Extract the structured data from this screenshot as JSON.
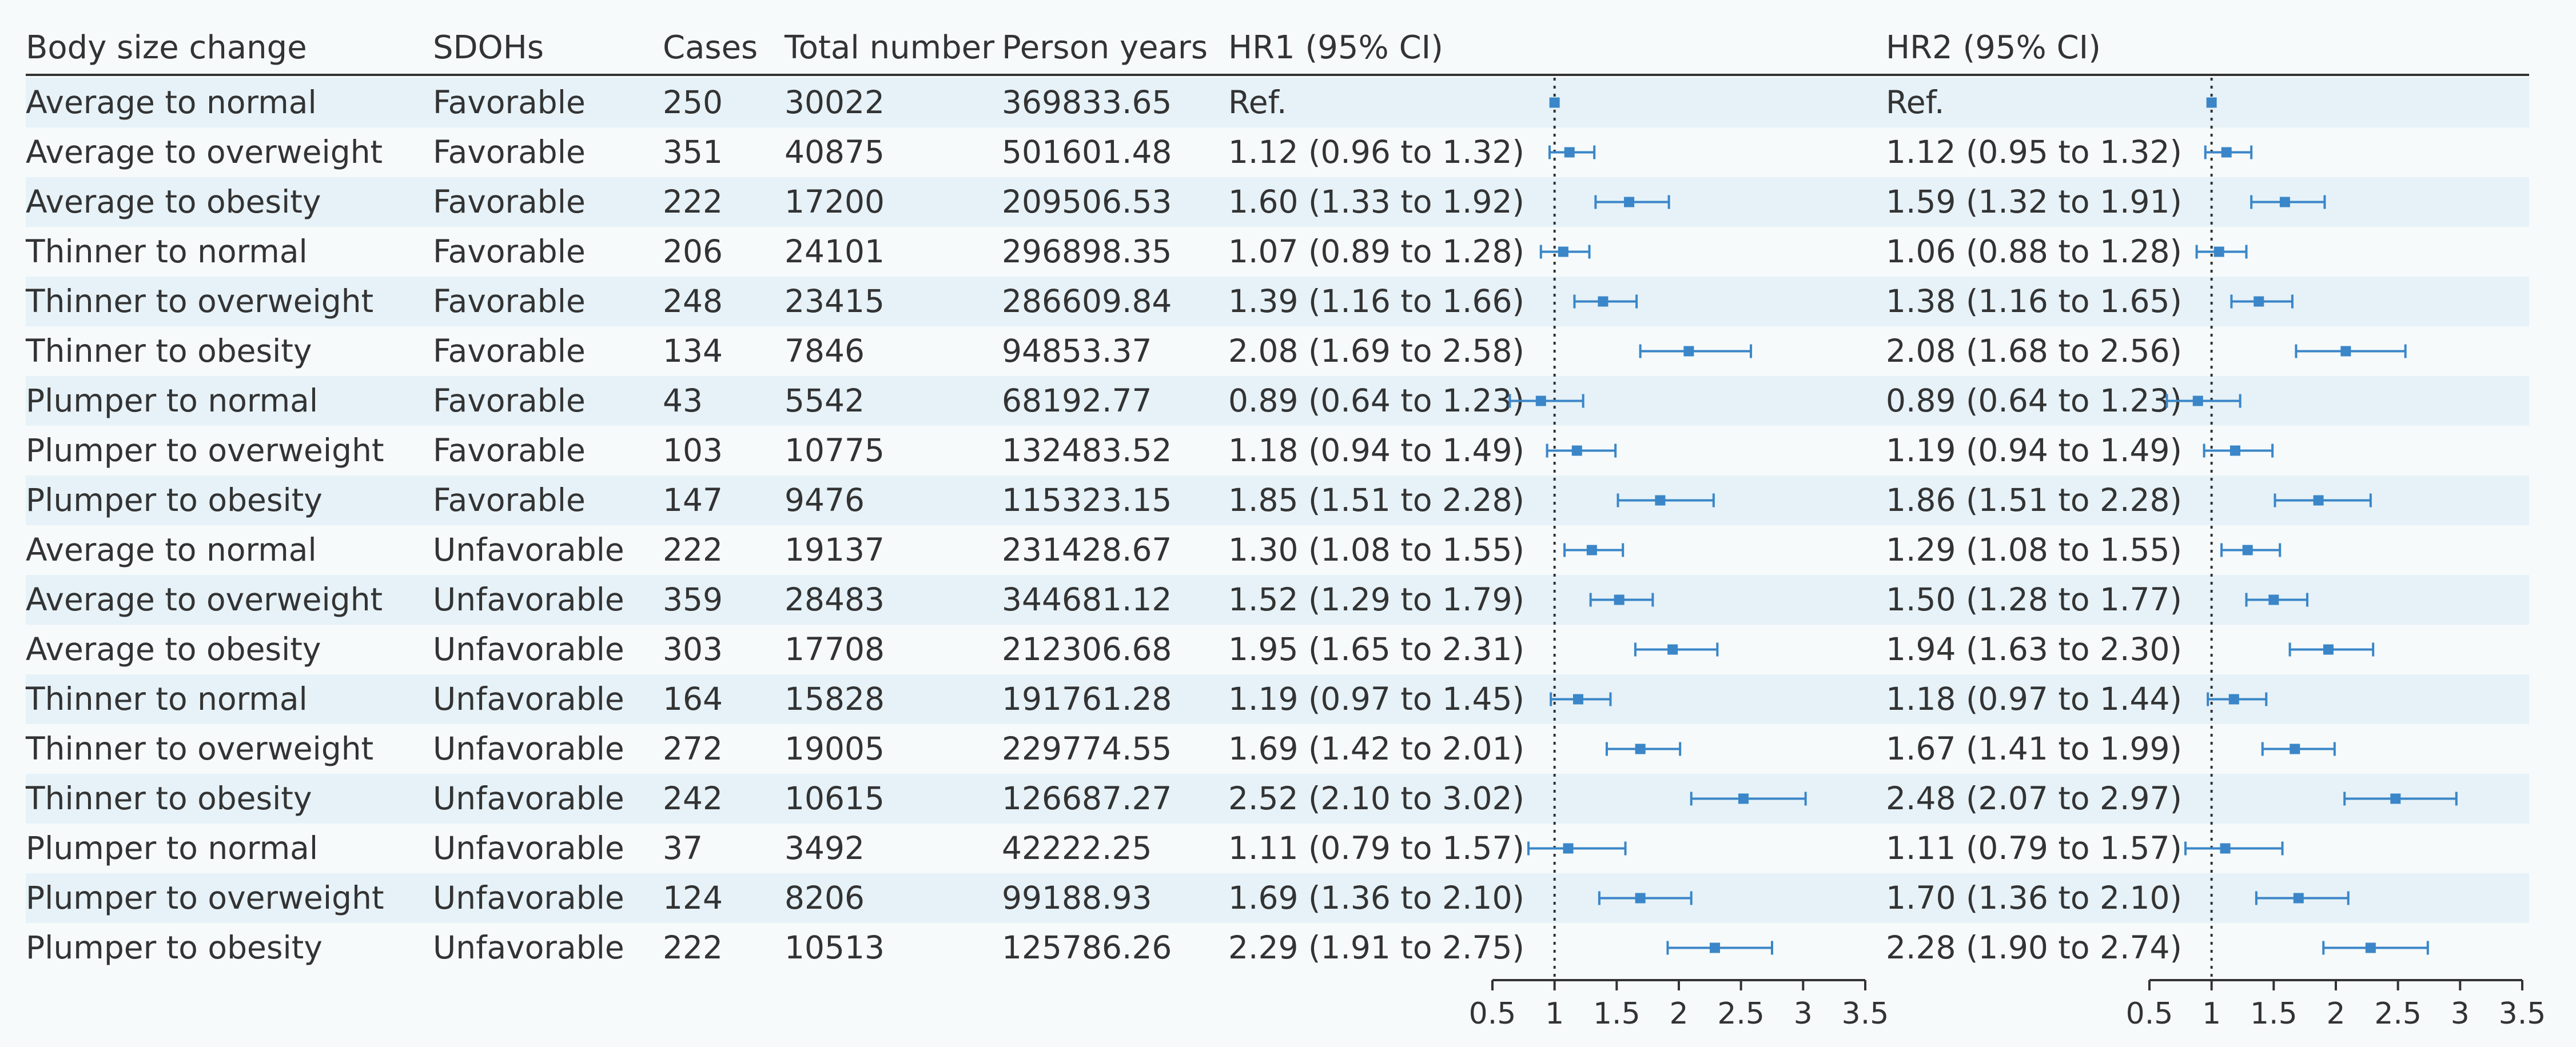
{
  "headers": {
    "body_size": "Body size change",
    "sdoh": "SDOHs",
    "cases": "Cases",
    "total": "Total number",
    "person_years": "Person years",
    "hr1": "HR1 (95% CI)",
    "hr2": "HR2 (95% CI)"
  },
  "rows": [
    {
      "body": "Average to normal",
      "sdoh": "Favorable",
      "cases": "250",
      "total": "30022",
      "py": "369833.65",
      "hr1_text": "Ref.",
      "hr2_text": "Ref."
    },
    {
      "body": "Average to overweight",
      "sdoh": "Favorable",
      "cases": "351",
      "total": "40875",
      "py": "501601.48",
      "hr1_text": "1.12 (0.96 to 1.32)",
      "hr2_text": "1.12 (0.95 to 1.32)"
    },
    {
      "body": "Average to obesity",
      "sdoh": "Favorable",
      "cases": "222",
      "total": "17200",
      "py": "209506.53",
      "hr1_text": "1.60 (1.33 to 1.92)",
      "hr2_text": "1.59 (1.32 to 1.91)"
    },
    {
      "body": "Thinner to normal",
      "sdoh": "Favorable",
      "cases": "206",
      "total": "24101",
      "py": "296898.35",
      "hr1_text": "1.07 (0.89 to 1.28)",
      "hr2_text": "1.06 (0.88 to 1.28)"
    },
    {
      "body": "Thinner to overweight",
      "sdoh": "Favorable",
      "cases": "248",
      "total": "23415",
      "py": "286609.84",
      "hr1_text": "1.39 (1.16 to 1.66)",
      "hr2_text": "1.38 (1.16 to 1.65)"
    },
    {
      "body": "Thinner to obesity",
      "sdoh": "Favorable",
      "cases": "134",
      "total": "7846",
      "py": "94853.37",
      "hr1_text": "2.08 (1.69 to 2.58)",
      "hr2_text": "2.08 (1.68 to 2.56)"
    },
    {
      "body": "Plumper to normal",
      "sdoh": "Favorable",
      "cases": "43",
      "total": "5542",
      "py": "68192.77",
      "hr1_text": "0.89 (0.64 to 1.23)",
      "hr2_text": "0.89 (0.64 to 1.23)"
    },
    {
      "body": "Plumper to overweight",
      "sdoh": "Favorable",
      "cases": "103",
      "total": "10775",
      "py": "132483.52",
      "hr1_text": "1.18 (0.94 to 1.49)",
      "hr2_text": "1.19 (0.94 to 1.49)"
    },
    {
      "body": "Plumper to obesity",
      "sdoh": "Favorable",
      "cases": "147",
      "total": "9476",
      "py": "115323.15",
      "hr1_text": "1.85 (1.51 to 2.28)",
      "hr2_text": "1.86 (1.51 to 2.28)"
    },
    {
      "body": "Average to normal",
      "sdoh": "Unfavorable",
      "cases": "222",
      "total": "19137",
      "py": "231428.67",
      "hr1_text": "1.30 (1.08 to 1.55)",
      "hr2_text": "1.29 (1.08 to 1.55)"
    },
    {
      "body": "Average to overweight",
      "sdoh": "Unfavorable",
      "cases": "359",
      "total": "28483",
      "py": "344681.12",
      "hr1_text": "1.52 (1.29 to 1.79)",
      "hr2_text": "1.50 (1.28 to 1.77)"
    },
    {
      "body": "Average to obesity",
      "sdoh": "Unfavorable",
      "cases": "303",
      "total": "17708",
      "py": "212306.68",
      "hr1_text": "1.95 (1.65 to 2.31)",
      "hr2_text": "1.94 (1.63 to 2.30)"
    },
    {
      "body": "Thinner to normal",
      "sdoh": "Unfavorable",
      "cases": "164",
      "total": "15828",
      "py": "191761.28",
      "hr1_text": "1.19 (0.97 to 1.45)",
      "hr2_text": "1.18 (0.97 to 1.44)"
    },
    {
      "body": "Thinner to overweight",
      "sdoh": "Unfavorable",
      "cases": "272",
      "total": "19005",
      "py": "229774.55",
      "hr1_text": "1.69 (1.42 to 2.01)",
      "hr2_text": "1.67 (1.41 to 1.99)"
    },
    {
      "body": "Thinner to obesity",
      "sdoh": "Unfavorable",
      "cases": "242",
      "total": "10615",
      "py": "126687.27",
      "hr1_text": "2.52 (2.10 to 3.02)",
      "hr2_text": "2.48 (2.07 to 2.97)"
    },
    {
      "body": "Plumper to normal",
      "sdoh": "Unfavorable",
      "cases": "37",
      "total": "3492",
      "py": "42222.25",
      "hr1_text": "1.11 (0.79 to 1.57)",
      "hr2_text": "1.11 (0.79 to 1.57)"
    },
    {
      "body": "Plumper to overweight",
      "sdoh": "Unfavorable",
      "cases": "124",
      "total": "8206",
      "py": "99188.93",
      "hr1_text": "1.69 (1.36 to 2.10)",
      "hr2_text": "1.70 (1.36 to 2.10)"
    },
    {
      "body": "Plumper to obesity",
      "sdoh": "Unfavorable",
      "cases": "222",
      "total": "10513",
      "py": "125786.26",
      "hr1_text": "2.29 (1.91 to 2.75)",
      "hr2_text": "2.28 (1.90 to 2.74)"
    }
  ],
  "chart_data": {
    "type": "forest",
    "ticks": [
      "0.5",
      "1",
      "1.5",
      "2",
      "2.5",
      "3",
      "3.5"
    ],
    "xlim": [
      0.5,
      3.5
    ],
    "reference_line": 1,
    "colors": {
      "estimate": "#3a86c8",
      "ci": "#3a86c8",
      "stripe": "#e6f2f8",
      "text": "#333333"
    },
    "hr1": [
      {
        "est": 1.0,
        "lo": 1.0,
        "hi": 1.0
      },
      {
        "est": 1.12,
        "lo": 0.96,
        "hi": 1.32
      },
      {
        "est": 1.6,
        "lo": 1.33,
        "hi": 1.92
      },
      {
        "est": 1.07,
        "lo": 0.89,
        "hi": 1.28
      },
      {
        "est": 1.39,
        "lo": 1.16,
        "hi": 1.66
      },
      {
        "est": 2.08,
        "lo": 1.69,
        "hi": 2.58
      },
      {
        "est": 0.89,
        "lo": 0.64,
        "hi": 1.23
      },
      {
        "est": 1.18,
        "lo": 0.94,
        "hi": 1.49
      },
      {
        "est": 1.85,
        "lo": 1.51,
        "hi": 2.28
      },
      {
        "est": 1.3,
        "lo": 1.08,
        "hi": 1.55
      },
      {
        "est": 1.52,
        "lo": 1.29,
        "hi": 1.79
      },
      {
        "est": 1.95,
        "lo": 1.65,
        "hi": 2.31
      },
      {
        "est": 1.19,
        "lo": 0.97,
        "hi": 1.45
      },
      {
        "est": 1.69,
        "lo": 1.42,
        "hi": 2.01
      },
      {
        "est": 2.52,
        "lo": 2.1,
        "hi": 3.02
      },
      {
        "est": 1.11,
        "lo": 0.79,
        "hi": 1.57
      },
      {
        "est": 1.69,
        "lo": 1.36,
        "hi": 2.1
      },
      {
        "est": 2.29,
        "lo": 1.91,
        "hi": 2.75
      }
    ],
    "hr2": [
      {
        "est": 1.0,
        "lo": 1.0,
        "hi": 1.0
      },
      {
        "est": 1.12,
        "lo": 0.95,
        "hi": 1.32
      },
      {
        "est": 1.59,
        "lo": 1.32,
        "hi": 1.91
      },
      {
        "est": 1.06,
        "lo": 0.88,
        "hi": 1.28
      },
      {
        "est": 1.38,
        "lo": 1.16,
        "hi": 1.65
      },
      {
        "est": 2.08,
        "lo": 1.68,
        "hi": 2.56
      },
      {
        "est": 0.89,
        "lo": 0.64,
        "hi": 1.23
      },
      {
        "est": 1.19,
        "lo": 0.94,
        "hi": 1.49
      },
      {
        "est": 1.86,
        "lo": 1.51,
        "hi": 2.28
      },
      {
        "est": 1.29,
        "lo": 1.08,
        "hi": 1.55
      },
      {
        "est": 1.5,
        "lo": 1.28,
        "hi": 1.77
      },
      {
        "est": 1.94,
        "lo": 1.63,
        "hi": 2.3
      },
      {
        "est": 1.18,
        "lo": 0.97,
        "hi": 1.44
      },
      {
        "est": 1.67,
        "lo": 1.41,
        "hi": 1.99
      },
      {
        "est": 2.48,
        "lo": 2.07,
        "hi": 2.97
      },
      {
        "est": 1.11,
        "lo": 0.79,
        "hi": 1.57
      },
      {
        "est": 1.7,
        "lo": 1.36,
        "hi": 2.1
      },
      {
        "est": 2.28,
        "lo": 1.9,
        "hi": 2.74
      }
    ]
  }
}
